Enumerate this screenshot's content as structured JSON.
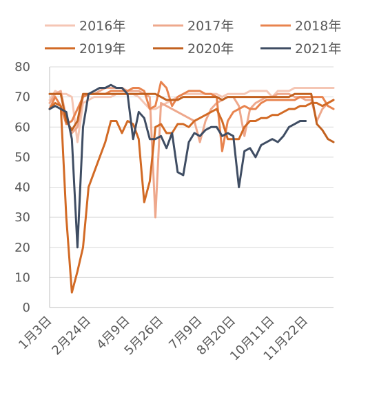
{
  "chart_data": {
    "type": "line",
    "title": "",
    "xlabel": "",
    "ylabel": "",
    "ylim": [
      0,
      80
    ],
    "yticks": [
      0,
      10,
      20,
      30,
      40,
      50,
      60,
      70,
      80
    ],
    "xlim": [
      1,
      52
    ],
    "x_ticks": [
      {
        "week": 1,
        "label": "1月3日"
      },
      {
        "week": 8,
        "label": "2月24日"
      },
      {
        "week": 15,
        "label": "4月9日"
      },
      {
        "week": 21,
        "label": "5月26日"
      },
      {
        "week": 28,
        "label": "7月9日"
      },
      {
        "week": 34,
        "label": "8月20日"
      },
      {
        "week": 41,
        "label": "10月11日"
      },
      {
        "week": 47,
        "label": "11月22日"
      }
    ],
    "grid": "horizontal",
    "legend_position": "top",
    "series": [
      {
        "name": "2016年",
        "color": "#f5c6b4",
        "points": [
          [
            1,
            69
          ],
          [
            2,
            72
          ],
          [
            3,
            71
          ],
          [
            4,
            71
          ],
          [
            5,
            70
          ],
          [
            6,
            55
          ],
          [
            7,
            68
          ],
          [
            8,
            69
          ],
          [
            9,
            70
          ],
          [
            10,
            70
          ],
          [
            11,
            70
          ],
          [
            12,
            70
          ],
          [
            13,
            71
          ],
          [
            14,
            71
          ],
          [
            15,
            71
          ],
          [
            16,
            71
          ],
          [
            17,
            70
          ],
          [
            18,
            68
          ],
          [
            19,
            66
          ],
          [
            20,
            66
          ],
          [
            21,
            67
          ],
          [
            22,
            68
          ],
          [
            23,
            69
          ],
          [
            24,
            70
          ],
          [
            25,
            71
          ],
          [
            26,
            71
          ],
          [
            27,
            71
          ],
          [
            28,
            71
          ],
          [
            29,
            71
          ],
          [
            30,
            71
          ],
          [
            31,
            71
          ],
          [
            32,
            70
          ],
          [
            33,
            71
          ],
          [
            34,
            71
          ],
          [
            35,
            71
          ],
          [
            36,
            71
          ],
          [
            37,
            72
          ],
          [
            38,
            72
          ],
          [
            39,
            72
          ],
          [
            40,
            72
          ],
          [
            41,
            70
          ],
          [
            42,
            72
          ],
          [
            43,
            72
          ],
          [
            44,
            72
          ],
          [
            45,
            73
          ],
          [
            46,
            73
          ],
          [
            47,
            73
          ],
          [
            48,
            73
          ],
          [
            49,
            73
          ],
          [
            50,
            73
          ],
          [
            51,
            73
          ],
          [
            52,
            73
          ]
        ]
      },
      {
        "name": "2017年",
        "color": "#eea88c",
        "points": [
          [
            1,
            68
          ],
          [
            2,
            71
          ],
          [
            3,
            72
          ],
          [
            4,
            63
          ],
          [
            5,
            58
          ],
          [
            6,
            60
          ],
          [
            7,
            70
          ],
          [
            8,
            71
          ],
          [
            9,
            71
          ],
          [
            10,
            72
          ],
          [
            11,
            73
          ],
          [
            12,
            73
          ],
          [
            13,
            73
          ],
          [
            14,
            73
          ],
          [
            15,
            72
          ],
          [
            16,
            72
          ],
          [
            17,
            72
          ],
          [
            18,
            71
          ],
          [
            19,
            70
          ],
          [
            20,
            30
          ],
          [
            21,
            68
          ],
          [
            22,
            67
          ],
          [
            23,
            66
          ],
          [
            24,
            65
          ],
          [
            25,
            64
          ],
          [
            26,
            63
          ],
          [
            27,
            62
          ],
          [
            28,
            55
          ],
          [
            29,
            62
          ],
          [
            30,
            66
          ],
          [
            31,
            68
          ],
          [
            32,
            69
          ],
          [
            33,
            70
          ],
          [
            34,
            70
          ],
          [
            35,
            67
          ],
          [
            36,
            57
          ],
          [
            37,
            66
          ],
          [
            38,
            68
          ],
          [
            39,
            69
          ],
          [
            40,
            70
          ],
          [
            41,
            70
          ],
          [
            42,
            71
          ],
          [
            43,
            71
          ],
          [
            44,
            71
          ],
          [
            45,
            70
          ],
          [
            46,
            70
          ],
          [
            47,
            69
          ],
          [
            48,
            69
          ],
          [
            49,
            62
          ],
          [
            50,
            66
          ],
          [
            51,
            68
          ],
          [
            52,
            69
          ]
        ]
      },
      {
        "name": "2018年",
        "color": "#e8834e",
        "points": [
          [
            1,
            66
          ],
          [
            2,
            70
          ],
          [
            3,
            67
          ],
          [
            4,
            61
          ],
          [
            5,
            62
          ],
          [
            6,
            66
          ],
          [
            7,
            70
          ],
          [
            8,
            71
          ],
          [
            9,
            71
          ],
          [
            10,
            71
          ],
          [
            11,
            71
          ],
          [
            12,
            72
          ],
          [
            13,
            72
          ],
          [
            14,
            72
          ],
          [
            15,
            72
          ],
          [
            16,
            73
          ],
          [
            17,
            73
          ],
          [
            18,
            72
          ],
          [
            19,
            66
          ],
          [
            20,
            67
          ],
          [
            21,
            75
          ],
          [
            22,
            73
          ],
          [
            23,
            67
          ],
          [
            24,
            70
          ],
          [
            25,
            71
          ],
          [
            26,
            72
          ],
          [
            27,
            72
          ],
          [
            28,
            72
          ],
          [
            29,
            71
          ],
          [
            30,
            71
          ],
          [
            31,
            70
          ],
          [
            32,
            52
          ],
          [
            33,
            62
          ],
          [
            34,
            65
          ],
          [
            35,
            66
          ],
          [
            36,
            67
          ],
          [
            37,
            66
          ],
          [
            38,
            66
          ],
          [
            39,
            68
          ],
          [
            40,
            69
          ],
          [
            41,
            69
          ],
          [
            42,
            69
          ],
          [
            43,
            69
          ],
          [
            44,
            69
          ],
          [
            45,
            69
          ],
          [
            46,
            70
          ],
          [
            47,
            70
          ],
          [
            48,
            70
          ],
          [
            49,
            70
          ],
          [
            50,
            70
          ],
          [
            51,
            67
          ],
          [
            52,
            66
          ]
        ]
      },
      {
        "name": "2019年",
        "color": "#d26a25",
        "points": [
          [
            1,
            66
          ],
          [
            2,
            68
          ],
          [
            3,
            67
          ],
          [
            4,
            30
          ],
          [
            5,
            5
          ],
          [
            6,
            12
          ],
          [
            7,
            20
          ],
          [
            8,
            40
          ],
          [
            9,
            45
          ],
          [
            10,
            50
          ],
          [
            11,
            55
          ],
          [
            12,
            62
          ],
          [
            13,
            62
          ],
          [
            14,
            58
          ],
          [
            15,
            62
          ],
          [
            16,
            61
          ],
          [
            17,
            56
          ],
          [
            18,
            35
          ],
          [
            19,
            42
          ],
          [
            20,
            60
          ],
          [
            21,
            61
          ],
          [
            22,
            58
          ],
          [
            23,
            58
          ],
          [
            24,
            61
          ],
          [
            25,
            61
          ],
          [
            26,
            60
          ],
          [
            27,
            62
          ],
          [
            28,
            63
          ],
          [
            29,
            64
          ],
          [
            30,
            65
          ],
          [
            31,
            66
          ],
          [
            32,
            62
          ],
          [
            33,
            56
          ],
          [
            34,
            56
          ],
          [
            35,
            56
          ],
          [
            36,
            60
          ],
          [
            37,
            62
          ],
          [
            38,
            62
          ],
          [
            39,
            63
          ],
          [
            40,
            63
          ],
          [
            41,
            64
          ],
          [
            42,
            64
          ],
          [
            43,
            65
          ],
          [
            44,
            66
          ],
          [
            45,
            66
          ],
          [
            46,
            67
          ],
          [
            47,
            67
          ],
          [
            48,
            68
          ],
          [
            49,
            68
          ],
          [
            50,
            67
          ],
          [
            51,
            68
          ],
          [
            52,
            69
          ]
        ]
      },
      {
        "name": "2020年",
        "color": "#c2611f",
        "points": [
          [
            1,
            71
          ],
          [
            2,
            71
          ],
          [
            3,
            71
          ],
          [
            4,
            62
          ],
          [
            5,
            59
          ],
          [
            6,
            62
          ],
          [
            7,
            71
          ],
          [
            8,
            71
          ],
          [
            9,
            71
          ],
          [
            10,
            71
          ],
          [
            11,
            71
          ],
          [
            12,
            71
          ],
          [
            13,
            71
          ],
          [
            14,
            71
          ],
          [
            15,
            71
          ],
          [
            16,
            71
          ],
          [
            17,
            71
          ],
          [
            18,
            71
          ],
          [
            19,
            71
          ],
          [
            20,
            71
          ],
          [
            21,
            70
          ],
          [
            22,
            69
          ],
          [
            23,
            69
          ],
          [
            24,
            69
          ],
          [
            25,
            70
          ],
          [
            26,
            70
          ],
          [
            27,
            70
          ],
          [
            28,
            70
          ],
          [
            29,
            70
          ],
          [
            30,
            70
          ],
          [
            31,
            70
          ],
          [
            32,
            69
          ],
          [
            33,
            70
          ],
          [
            34,
            70
          ],
          [
            35,
            70
          ],
          [
            36,
            70
          ],
          [
            37,
            70
          ],
          [
            38,
            70
          ],
          [
            39,
            70
          ],
          [
            40,
            70
          ],
          [
            41,
            70
          ],
          [
            42,
            70
          ],
          [
            43,
            70
          ],
          [
            44,
            70
          ],
          [
            45,
            71
          ],
          [
            46,
            71
          ],
          [
            47,
            71
          ],
          [
            48,
            71
          ],
          [
            49,
            61
          ],
          [
            50,
            59
          ],
          [
            51,
            56
          ],
          [
            52,
            55
          ]
        ]
      },
      {
        "name": "2021年",
        "color": "#3f4d63",
        "points": [
          [
            1,
            66
          ],
          [
            2,
            67
          ],
          [
            3,
            66
          ],
          [
            4,
            65
          ],
          [
            5,
            56
          ],
          [
            6,
            20
          ],
          [
            7,
            60
          ],
          [
            8,
            71
          ],
          [
            9,
            72
          ],
          [
            10,
            73
          ],
          [
            11,
            73
          ],
          [
            12,
            74
          ],
          [
            13,
            73
          ],
          [
            14,
            73
          ],
          [
            15,
            71
          ],
          [
            16,
            56
          ],
          [
            17,
            65
          ],
          [
            18,
            63
          ],
          [
            19,
            56
          ],
          [
            20,
            56
          ],
          [
            21,
            57
          ],
          [
            22,
            53
          ],
          [
            23,
            58
          ],
          [
            24,
            45
          ],
          [
            25,
            44
          ],
          [
            26,
            55
          ],
          [
            27,
            58
          ],
          [
            28,
            57
          ],
          [
            29,
            59
          ],
          [
            30,
            60
          ],
          [
            31,
            60
          ],
          [
            32,
            57
          ],
          [
            33,
            58
          ],
          [
            34,
            57
          ],
          [
            35,
            40
          ],
          [
            36,
            52
          ],
          [
            37,
            53
          ],
          [
            38,
            50
          ],
          [
            39,
            54
          ],
          [
            40,
            55
          ],
          [
            41,
            56
          ],
          [
            42,
            55
          ],
          [
            43,
            57
          ],
          [
            44,
            60
          ],
          [
            45,
            61
          ],
          [
            46,
            62
          ],
          [
            47,
            62
          ]
        ]
      }
    ]
  }
}
